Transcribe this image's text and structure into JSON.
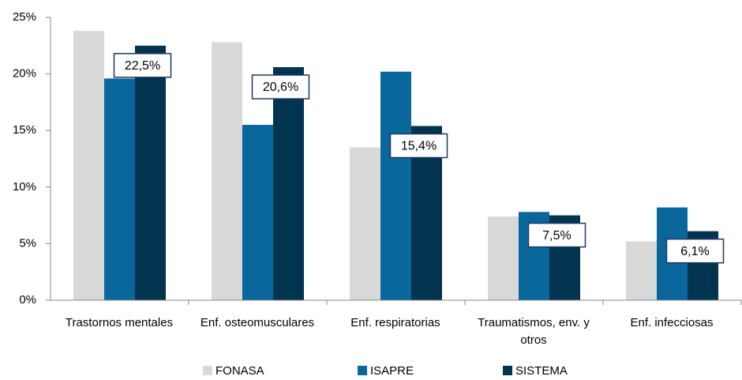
{
  "chart_data": {
    "type": "bar",
    "categories": [
      "Trastornos mentales",
      "Enf. osteomusculares",
      "Enf. respiratorias",
      "Traumatismos, env. y otros",
      "Enf. infecciosas"
    ],
    "series": [
      {
        "name": "FONASA",
        "color": "#d9d9d9",
        "values": [
          23.8,
          22.8,
          13.5,
          7.4,
          5.2
        ]
      },
      {
        "name": "ISAPRE",
        "color": "#0a679c",
        "values": [
          19.6,
          15.5,
          20.2,
          7.8,
          8.2
        ]
      },
      {
        "name": "SISTEMA",
        "color": "#03344f",
        "values": [
          22.5,
          20.6,
          15.4,
          7.5,
          6.1
        ],
        "value_labels": [
          "22,5%",
          "20,6%",
          "15,4%",
          "7,5%",
          "6,1%"
        ]
      }
    ],
    "ylim": [
      0,
      25
    ],
    "yticks": [
      {
        "value": 0,
        "label": "0%"
      },
      {
        "value": 5,
        "label": "5%"
      },
      {
        "value": 10,
        "label": "10%"
      },
      {
        "value": 15,
        "label": "15%"
      },
      {
        "value": 20,
        "label": "20%"
      },
      {
        "value": 25,
        "label": "25%"
      }
    ],
    "legend": "bottom"
  }
}
